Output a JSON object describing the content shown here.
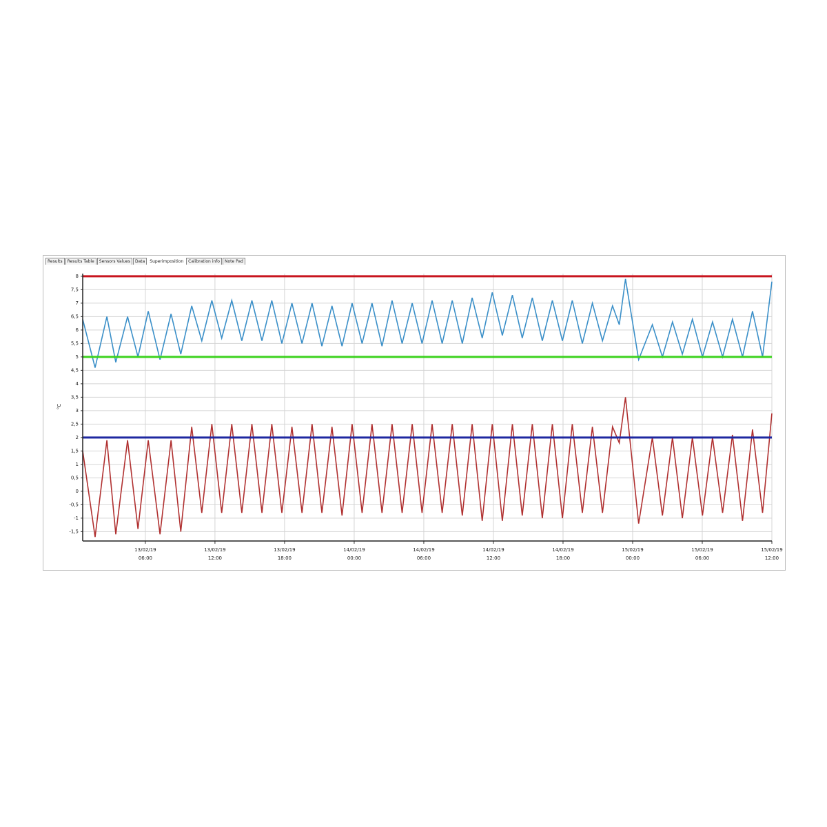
{
  "tabs": [
    "Results",
    "Results Table",
    "Sensors Values",
    "Data",
    "Superimposition",
    "Calibration info",
    "Note Pad"
  ],
  "chart_data": {
    "type": "line",
    "y_label": "°C",
    "xlim": [
      "13/02/19 00:36",
      "15/02/19 12:00"
    ],
    "xticks": [
      {
        "value": "13/02/19 06:00",
        "label": "13/02/19\n06:00"
      },
      {
        "value": "13/02/19 12:00",
        "label": "13/02/19\n12:00"
      },
      {
        "value": "13/02/19 18:00",
        "label": "13/02/19\n18:00"
      },
      {
        "value": "14/02/19 00:00",
        "label": "14/02/19\n00:00"
      },
      {
        "value": "14/02/19 06:00",
        "label": "14/02/19\n06:00"
      },
      {
        "value": "14/02/19 12:00",
        "label": "14/02/19\n12:00"
      },
      {
        "value": "14/02/19 18:00",
        "label": "14/02/19\n18:00"
      },
      {
        "value": "15/02/19 00:00",
        "label": "15/02/19\n00:00"
      },
      {
        "value": "15/02/19 06:00",
        "label": "15/02/19\n06:00"
      },
      {
        "value": "15/02/19 12:00",
        "label": "15/02/19\n12:00"
      }
    ],
    "ylim": [
      -1.85,
      8.1
    ],
    "yticks": [
      {
        "value": -1.5,
        "label": "-1,5"
      },
      -1,
      {
        "value": -0.5,
        "label": "-0,5"
      },
      0,
      {
        "value": 0.5,
        "label": "0,5"
      },
      1,
      {
        "value": 1.5,
        "label": "1,5"
      },
      2,
      {
        "value": 2.5,
        "label": "2,5"
      },
      3,
      {
        "value": 3.5,
        "label": "3,5"
      },
      4,
      {
        "value": 4.5,
        "label": "4,5"
      },
      5,
      {
        "value": 5.5,
        "label": "5,5"
      },
      6,
      {
        "value": 6.5,
        "label": "6,5"
      },
      7,
      {
        "value": 7.5,
        "label": "7,5"
      },
      8
    ],
    "grid": true,
    "reference_lines": [
      {
        "value": 8,
        "color": "#c8141e"
      },
      {
        "value": 5,
        "color": "#3cd21e"
      },
      {
        "value": 2,
        "color": "#1e28a0"
      }
    ],
    "x": [
      "13/02/19 00:36",
      "13/02/19 01:40",
      "13/02/19 02:41",
      "13/02/19 03:27",
      "13/02/19 04:28",
      "13/02/19 05:22",
      "13/02/19 06:15",
      "13/02/19 07:16",
      "13/02/19 08:13",
      "13/02/19 09:03",
      "13/02/19 10:00",
      "13/02/19 10:52",
      "13/02/19 11:44",
      "13/02/19 12:35",
      "13/02/19 13:27",
      "13/02/19 14:19",
      "13/02/19 15:11",
      "13/02/19 16:03",
      "13/02/19 16:54",
      "13/02/19 17:46",
      "13/02/19 18:38",
      "13/02/19 19:30",
      "13/02/19 20:22",
      "13/02/19 21:13",
      "13/02/19 22:05",
      "13/02/19 22:57",
      "13/02/19 23:49",
      "14/02/19 00:41",
      "14/02/19 01:32",
      "14/02/19 02:24",
      "14/02/19 03:16",
      "14/02/19 04:08",
      "14/02/19 05:00",
      "14/02/19 05:51",
      "14/02/19 06:43",
      "14/02/19 07:35",
      "14/02/19 08:27",
      "14/02/19 09:19",
      "14/02/19 10:10",
      "14/02/19 11:02",
      "14/02/19 11:54",
      "14/02/19 12:46",
      "14/02/19 13:38",
      "14/02/19 14:29",
      "14/02/19 15:21",
      "14/02/19 16:13",
      "14/02/19 17:05",
      "14/02/19 17:57",
      "14/02/19 18:48",
      "14/02/19 19:40",
      "14/02/19 20:32",
      "14/02/19 21:24",
      "14/02/19 22:16",
      "14/02/19 22:51",
      "14/02/19 23:23",
      "15/02/19 00:31",
      "15/02/19 01:42",
      "15/02/19 02:34",
      "15/02/19 03:26",
      "15/02/19 04:17",
      "15/02/19 05:09",
      "15/02/19 06:01",
      "15/02/19 06:53",
      "15/02/19 07:45",
      "15/02/19 08:36",
      "15/02/19 09:28",
      "15/02/19 10:20",
      "15/02/19 11:12",
      "15/02/19 12:00"
    ],
    "series": [
      {
        "color": "#3a8fc8",
        "values": [
          6.4,
          4.6,
          6.5,
          4.8,
          6.5,
          5.0,
          6.7,
          4.9,
          6.6,
          5.1,
          6.9,
          5.6,
          7.1,
          5.7,
          7.1,
          5.6,
          7.1,
          5.6,
          7.1,
          5.5,
          7.0,
          5.5,
          7.0,
          5.4,
          6.9,
          5.4,
          7.0,
          5.5,
          7.0,
          5.4,
          7.1,
          5.5,
          7.0,
          5.5,
          7.1,
          5.5,
          7.1,
          5.5,
          7.2,
          5.7,
          7.4,
          5.8,
          7.3,
          5.7,
          7.2,
          5.6,
          7.1,
          5.6,
          7.1,
          5.5,
          7.0,
          5.6,
          6.9,
          6.2,
          7.9,
          4.9,
          6.2,
          5.0,
          6.3,
          5.1,
          6.4,
          5.0,
          6.3,
          5.0,
          6.4,
          5.0,
          6.7,
          5.0,
          7.8
        ]
      },
      {
        "color": "#b03030",
        "values": [
          1.5,
          -1.7,
          1.9,
          -1.6,
          1.9,
          -1.4,
          1.9,
          -1.6,
          1.9,
          -1.5,
          2.4,
          -0.8,
          2.5,
          -0.8,
          2.5,
          -0.8,
          2.5,
          -0.8,
          2.5,
          -0.8,
          2.4,
          -0.8,
          2.5,
          -0.8,
          2.4,
          -0.9,
          2.5,
          -0.8,
          2.5,
          -0.8,
          2.5,
          -0.8,
          2.5,
          -0.8,
          2.5,
          -0.8,
          2.5,
          -0.9,
          2.5,
          -1.1,
          2.5,
          -1.1,
          2.5,
          -0.9,
          2.5,
          -1.0,
          2.5,
          -1.0,
          2.5,
          -0.8,
          2.4,
          -0.8,
          2.4,
          1.8,
          3.5,
          -1.2,
          2.0,
          -0.9,
          2.0,
          -1.0,
          2.0,
          -0.9,
          2.0,
          -0.8,
          2.1,
          -1.1,
          2.3,
          -0.8,
          2.9
        ]
      }
    ]
  }
}
